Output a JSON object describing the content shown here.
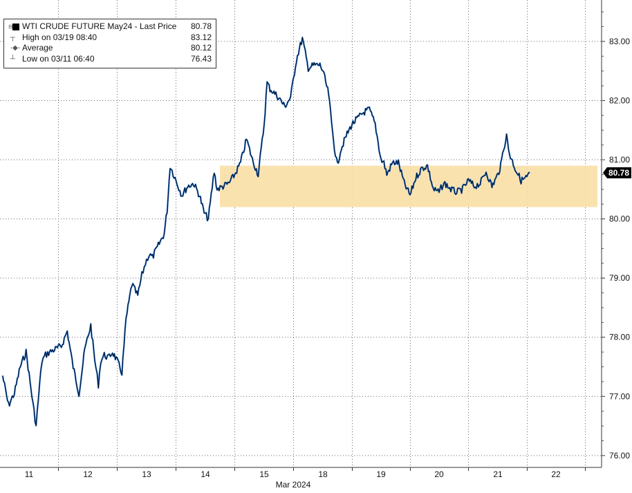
{
  "legend": {
    "title": "WTI CRUDE FUTURE May24 - Last Price",
    "last": "80.78",
    "rows": [
      {
        "label": "High on 03/19 08:40",
        "value": "83.12"
      },
      {
        "label": "Average",
        "value": "80.12"
      },
      {
        "label": "Low on 03/11 06:40",
        "value": "76.43"
      }
    ]
  },
  "colors": {
    "price_line": "#000000",
    "price_overlay": "#1f6fd1",
    "range_band": "#f9dfa6",
    "last_tag_bg": "#000000",
    "last_tag_fg": "#ffffff",
    "grid": "#666666"
  },
  "chart_data": {
    "type": "line",
    "title": "WTI CRUDE FUTURE May24 - Last Price",
    "xlabel": "Mar 2024",
    "ylabel": "",
    "x_ticks": [
      "11",
      "12",
      "13",
      "14",
      "15",
      "18",
      "19",
      "20",
      "21",
      "22"
    ],
    "y_ticks": [
      "76.00",
      "77.00",
      "78.00",
      "79.00",
      "80.00",
      "81.00",
      "82.00",
      "83.00"
    ],
    "ylim": [
      75.8,
      83.7
    ],
    "grid": true,
    "last_price": 80.78,
    "high": 83.12,
    "average": 80.12,
    "low": 76.43,
    "highlight_band": [
      80.2,
      80.9
    ],
    "series": [
      {
        "name": "WTI CRUDE FUTURE May24 - Last Price",
        "x": [
          10.55,
          10.65,
          10.75,
          10.85,
          10.95,
          11.05,
          11.12,
          11.18,
          11.22,
          11.28,
          11.35,
          11.45,
          11.55,
          11.65,
          11.75,
          11.85,
          11.95,
          12.05,
          12.12,
          12.18,
          12.22,
          12.28,
          12.35,
          12.42,
          12.5,
          12.58,
          12.65,
          12.75,
          12.85,
          12.92,
          12.98,
          13.02,
          13.05,
          13.1,
          13.2,
          13.3,
          13.35,
          13.4,
          13.5,
          13.6,
          13.7,
          13.8,
          13.9,
          13.98,
          14.05,
          14.1,
          14.15,
          14.2,
          14.3,
          14.4,
          14.5,
          14.6,
          14.7,
          14.8,
          14.9,
          15.0,
          15.05,
          15.1,
          15.15,
          15.25,
          15.35,
          15.45,
          15.55,
          15.65,
          15.75,
          15.85,
          15.95,
          16.0,
          16.05,
          16.1,
          16.15,
          16.2,
          16.25,
          16.3,
          16.4,
          16.5,
          16.6,
          16.7,
          16.8,
          16.9,
          17.0,
          17.05,
          17.1,
          17.2,
          17.3,
          17.4,
          17.5,
          17.6,
          17.7,
          17.8,
          17.9,
          18.0,
          18.05,
          18.1,
          18.2,
          18.3,
          18.4,
          18.5,
          18.6,
          18.7,
          18.8,
          18.9,
          19.0,
          19.05,
          19.1,
          19.15,
          19.2,
          19.3,
          19.4,
          19.5,
          19.55
        ],
        "y": [
          77.35,
          76.85,
          77.05,
          77.5,
          77.75,
          77.0,
          76.5,
          77.2,
          77.6,
          77.7,
          77.75,
          77.8,
          77.85,
          78.1,
          77.5,
          77.05,
          77.8,
          78.2,
          77.6,
          77.2,
          77.6,
          77.7,
          77.65,
          77.75,
          77.6,
          77.4,
          78.3,
          78.9,
          78.7,
          79.05,
          79.25,
          79.35,
          79.4,
          79.35,
          79.55,
          79.75,
          80.15,
          80.9,
          80.65,
          80.4,
          80.55,
          80.6,
          80.4,
          80.1,
          80.0,
          80.4,
          80.8,
          80.5,
          80.55,
          80.6,
          80.75,
          80.95,
          81.35,
          81.0,
          80.75,
          81.6,
          82.3,
          82.2,
          82.15,
          82.05,
          81.9,
          82.05,
          82.7,
          83.05,
          82.55,
          82.6,
          82.6,
          82.5,
          82.3,
          82.1,
          81.6,
          81.2,
          80.9,
          81.15,
          81.4,
          81.6,
          81.7,
          81.8,
          81.85,
          81.6,
          81.0,
          80.95,
          80.75,
          80.95,
          80.95,
          80.6,
          80.4,
          80.7,
          80.85,
          80.9,
          80.5,
          80.45,
          80.55,
          80.6,
          80.5,
          80.45,
          80.5,
          80.65,
          80.55,
          80.6,
          80.8,
          80.55,
          80.75,
          80.9,
          81.2,
          81.4,
          81.1,
          80.85,
          80.65,
          80.7,
          80.78
        ]
      }
    ]
  }
}
